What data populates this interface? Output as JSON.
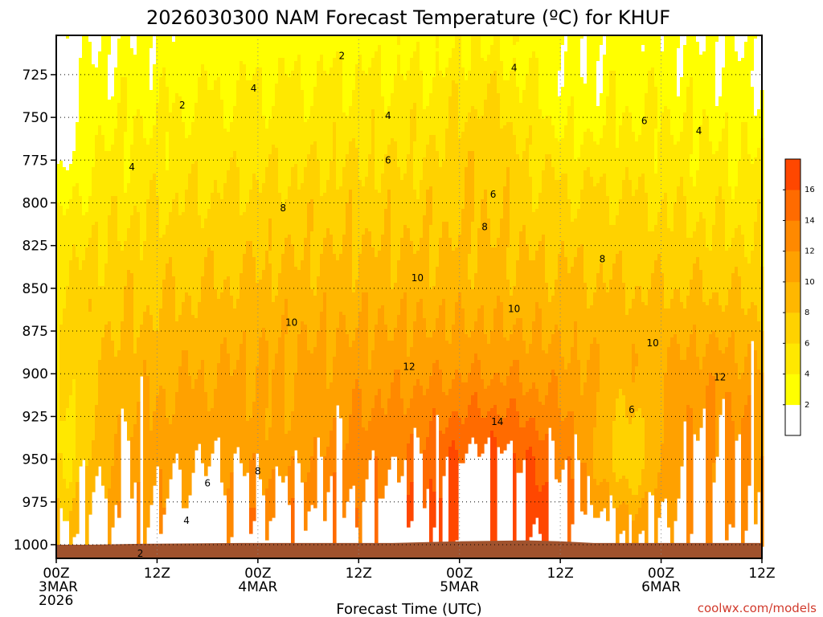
{
  "title": "2026030300 NAM Forecast Temperature (ºC) for KHUF",
  "credit": "coolwx.com/models",
  "chart_data": {
    "type": "heatmap",
    "title": "2026030300 NAM Forecast Temperature (ºC) for KHUF",
    "xlabel": "Forecast Time (UTC)",
    "ylabel": "",
    "xlim": [
      0,
      84
    ],
    "ylim": [
      1008,
      702
    ],
    "y_ticks": [
      725,
      750,
      775,
      800,
      825,
      850,
      875,
      900,
      925,
      950,
      975,
      1000
    ],
    "x_ticks": [
      {
        "hour": 0,
        "lines": [
          "00Z",
          "3MAR",
          "2026"
        ]
      },
      {
        "hour": 12,
        "lines": [
          "12Z"
        ]
      },
      {
        "hour": 24,
        "lines": [
          "00Z",
          "4MAR"
        ]
      },
      {
        "hour": 36,
        "lines": [
          "12Z"
        ]
      },
      {
        "hour": 48,
        "lines": [
          "00Z",
          "5MAR"
        ]
      },
      {
        "hour": 60,
        "lines": [
          "12Z"
        ]
      },
      {
        "hour": 72,
        "lines": [
          "00Z",
          "6MAR"
        ]
      },
      {
        "hour": 84,
        "lines": [
          "12Z"
        ]
      }
    ],
    "contour_interval": 2,
    "colorbar": {
      "levels": [
        0,
        2,
        4,
        6,
        8,
        10,
        12,
        14,
        16,
        18
      ],
      "labels": [
        "2",
        "4",
        "6",
        "8",
        "10",
        "12",
        "14",
        "16"
      ],
      "colors": [
        "#ffffff",
        "#ffff00",
        "#ffe800",
        "#ffd200",
        "#ffb700",
        "#ffa100",
        "#ff8900",
        "#ff6b00",
        "#ff4700"
      ]
    },
    "ground_color": "#a0522d",
    "ground_pressure": [
      {
        "hour": 0,
        "p": 1000
      },
      {
        "hour": 4,
        "p": 1000
      },
      {
        "hour": 10,
        "p": 999.5
      },
      {
        "hour": 22,
        "p": 999
      },
      {
        "hour": 40,
        "p": 999
      },
      {
        "hour": 48,
        "p": 998
      },
      {
        "hour": 56,
        "p": 997.5
      },
      {
        "hour": 60,
        "p": 998
      },
      {
        "hour": 64,
        "p": 999
      },
      {
        "hour": 84,
        "p": 999
      }
    ],
    "contour_labels": [
      {
        "text": "2",
        "hour": 34,
        "p": 714
      },
      {
        "text": "4",
        "hour": 23.5,
        "p": 733
      },
      {
        "text": "2",
        "hour": 15,
        "p": 743
      },
      {
        "text": "4",
        "hour": 39.5,
        "p": 749
      },
      {
        "text": "4",
        "hour": 54.5,
        "p": 721
      },
      {
        "text": "6",
        "hour": 70,
        "p": 752
      },
      {
        "text": "4",
        "hour": 76.5,
        "p": 758
      },
      {
        "text": "4",
        "hour": 9,
        "p": 779
      },
      {
        "text": "6",
        "hour": 39.5,
        "p": 775
      },
      {
        "text": "6",
        "hour": 52,
        "p": 795
      },
      {
        "text": "8",
        "hour": 27,
        "p": 803
      },
      {
        "text": "8",
        "hour": 51,
        "p": 814
      },
      {
        "text": "8",
        "hour": 65,
        "p": 833
      },
      {
        "text": "10",
        "hour": 43,
        "p": 844
      },
      {
        "text": "10",
        "hour": 54.5,
        "p": 862
      },
      {
        "text": "10",
        "hour": 28,
        "p": 870
      },
      {
        "text": "10",
        "hour": 71,
        "p": 882
      },
      {
        "text": "12",
        "hour": 42,
        "p": 896
      },
      {
        "text": "12",
        "hour": 79,
        "p": 902
      },
      {
        "text": "14",
        "hour": 52.5,
        "p": 928
      },
      {
        "text": "6",
        "hour": 68.5,
        "p": 921
      },
      {
        "text": "6",
        "hour": 18,
        "p": 964
      },
      {
        "text": "8",
        "hour": 24,
        "p": 957
      },
      {
        "text": "4",
        "hour": 15.5,
        "p": 986
      },
      {
        "text": "2",
        "hour": 10,
        "p": 1010
      }
    ]
  }
}
